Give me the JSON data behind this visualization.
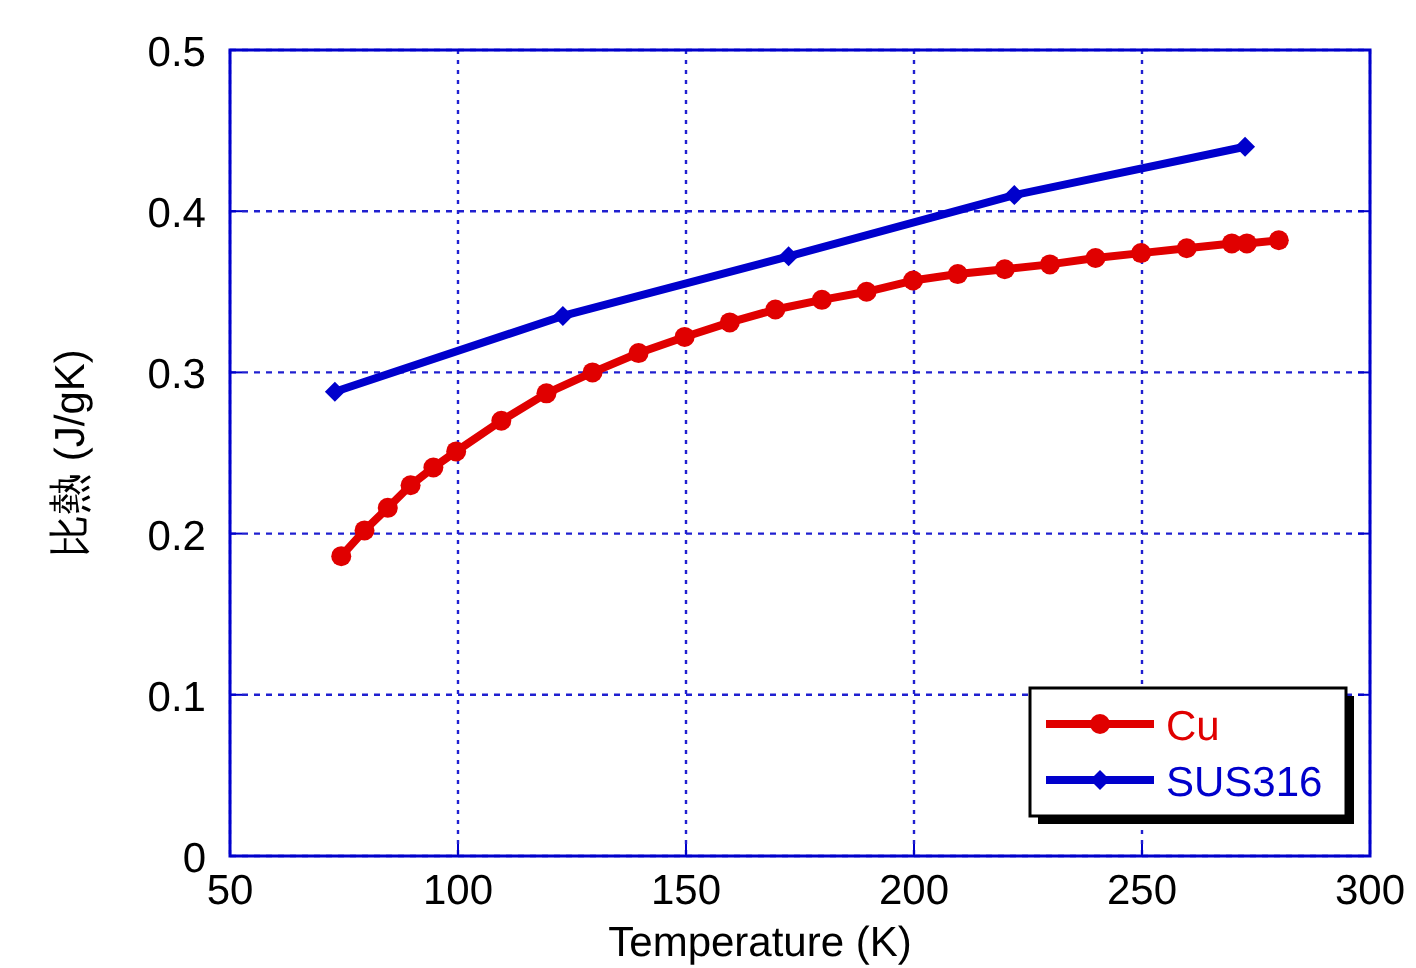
{
  "chart_data": {
    "type": "line",
    "xlabel": "Temperature (K)",
    "ylabel": "比熱 (J/gK)",
    "xlim": [
      50,
      300
    ],
    "xticks": [
      50,
      100,
      150,
      200,
      250,
      300
    ],
    "ylim": [
      0,
      0.5
    ],
    "yticks": [
      0,
      0.1,
      0.2,
      0.3,
      0.4,
      0.5
    ],
    "grid": true,
    "legend": "bottom right",
    "line_style": "solid",
    "series": [
      {
        "name": "Cu",
        "color": "#e00000",
        "marker": "circle",
        "x": [
          74.4,
          79.5,
          84.6,
          89.6,
          94.6,
          99.6,
          109.5,
          119.4,
          129.5,
          139.6,
          149.7,
          159.6,
          169.6,
          179.8,
          189.6,
          199.8,
          209.6,
          219.9,
          229.8,
          239.8,
          249.8,
          259.8,
          269.7,
          273,
          280
        ],
        "values": [
          0.186,
          0.202,
          0.216,
          0.23,
          0.241,
          0.251,
          0.27,
          0.287,
          0.3,
          0.312,
          0.322,
          0.331,
          0.339,
          0.345,
          0.35,
          0.357,
          0.361,
          0.364,
          0.367,
          0.371,
          0.374,
          0.377,
          0.38,
          0.38,
          0.382
        ]
      },
      {
        "name": "SUS316",
        "color": "#0000cc",
        "marker": "diamond",
        "x": [
          73,
          123,
          172.5,
          222,
          272.6
        ],
        "values": [
          0.288,
          0.335,
          0.372,
          0.41,
          0.44
        ]
      }
    ]
  }
}
